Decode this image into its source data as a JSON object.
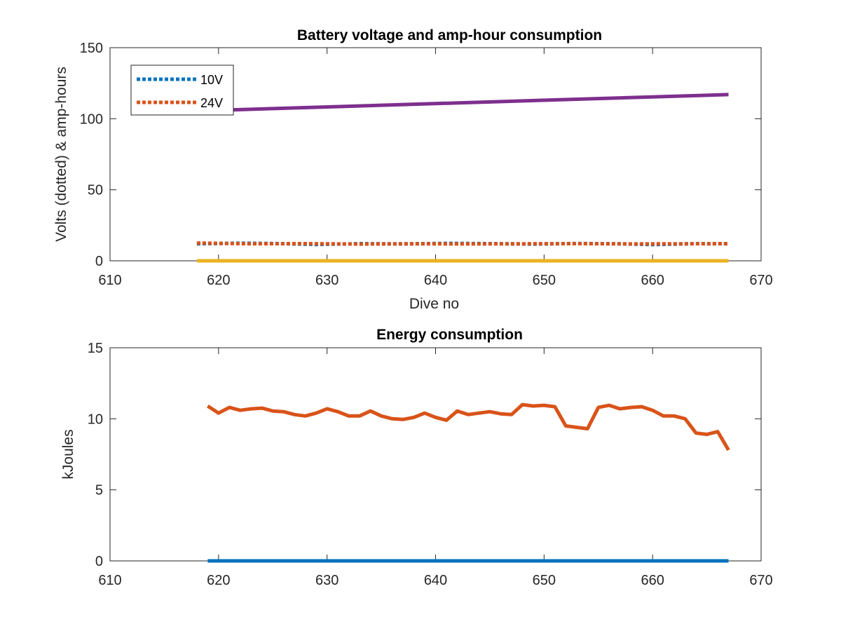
{
  "chart_data": [
    {
      "type": "line",
      "title": "Battery voltage and amp-hour consumption",
      "xlabel": "Dive no",
      "ylabel": "Volts (dotted) & amp-hours",
      "xlim": [
        610,
        670
      ],
      "ylim": [
        0,
        150
      ],
      "xticks": [
        610,
        620,
        630,
        640,
        650,
        660,
        670
      ],
      "yticks": [
        0,
        50,
        100,
        150
      ],
      "grid": false,
      "legend_position": "top-left",
      "series": [
        {
          "name": "10V",
          "style": "dotted",
          "color": "#0072BD",
          "x": [
            618,
            622,
            626,
            629,
            633,
            637,
            641,
            645,
            649,
            653,
            657,
            660,
            664,
            667
          ],
          "y": [
            12,
            12.4,
            12.1,
            11.5,
            12.1,
            11.9,
            12.3,
            12.1,
            11.8,
            12.2,
            12.0,
            11.4,
            12.1,
            12.0
          ]
        },
        {
          "name": "24V",
          "style": "dotted",
          "color": "#D95319",
          "x": [
            618,
            623,
            628,
            633,
            638,
            643,
            648,
            653,
            658,
            663,
            667
          ],
          "y": [
            12.5,
            12.0,
            12.1,
            11.8,
            12.0,
            11.9,
            12.0,
            12.1,
            11.9,
            12.0,
            12.1
          ]
        },
        {
          "style": "solid",
          "color": "#7E2F8E",
          "x": [
            618,
            667
          ],
          "y": [
            105.5,
            117
          ]
        },
        {
          "style": "solid",
          "color": "#EDB120",
          "x": [
            618,
            667
          ],
          "y": [
            0,
            0
          ]
        }
      ]
    },
    {
      "type": "line",
      "title": "Energy consumption",
      "xlabel": "",
      "ylabel": "kJoules",
      "xlim": [
        610,
        670
      ],
      "ylim": [
        0,
        15
      ],
      "xticks": [
        610,
        620,
        630,
        640,
        650,
        660,
        670
      ],
      "yticks": [
        0,
        5,
        10,
        15
      ],
      "grid": false,
      "series": [
        {
          "style": "solid",
          "color": "#D95319",
          "x": [
            619,
            620,
            621,
            622,
            623,
            624,
            625,
            626,
            627,
            628,
            629,
            630,
            631,
            632,
            633,
            634,
            635,
            636,
            637,
            638,
            639,
            640,
            641,
            642,
            643,
            644,
            645,
            646,
            647,
            648,
            649,
            650,
            651,
            652,
            653,
            654,
            655,
            656,
            657,
            658,
            659,
            660,
            661,
            662,
            663,
            664,
            665,
            666,
            667
          ],
          "y": [
            10.9,
            10.4,
            10.8,
            10.6,
            10.7,
            10.75,
            10.55,
            10.5,
            10.3,
            10.2,
            10.4,
            10.7,
            10.5,
            10.2,
            10.2,
            10.55,
            10.2,
            10.0,
            9.95,
            10.1,
            10.4,
            10.1,
            9.9,
            10.55,
            10.3,
            10.4,
            10.5,
            10.35,
            10.3,
            11.0,
            10.9,
            10.95,
            10.85,
            9.5,
            9.4,
            9.3,
            10.8,
            10.95,
            10.7,
            10.8,
            10.85,
            10.6,
            10.2,
            10.2,
            10.0,
            9.0,
            8.9,
            9.1,
            7.8
          ]
        },
        {
          "style": "solid",
          "color": "#0072BD",
          "x": [
            619,
            667
          ],
          "y": [
            0,
            0
          ]
        }
      ]
    }
  ]
}
